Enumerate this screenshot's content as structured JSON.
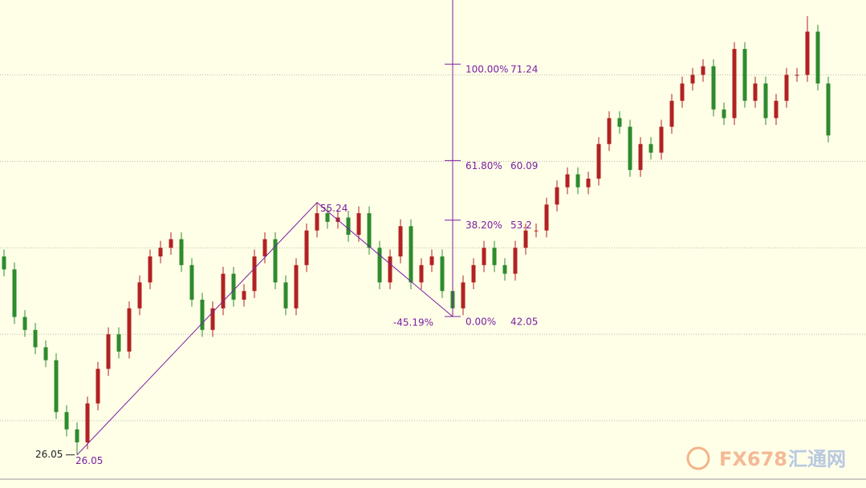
{
  "chart_data": {
    "type": "candlestick",
    "ylim": [
      23.24,
      78.66
    ],
    "yticks": [
      30,
      40,
      50,
      60,
      70
    ],
    "grid": true,
    "up_color": "#b22222",
    "down_color": "#2e8b2e",
    "open": [
      49,
      47.5,
      42,
      40.5,
      38.5,
      37,
      31,
      29,
      27.5,
      32,
      36,
      40,
      38,
      43,
      46,
      49,
      50,
      51,
      48,
      44,
      40.5,
      43,
      47,
      44,
      45,
      49,
      51,
      46,
      43,
      48,
      52,
      54,
      53,
      53.5,
      51.5,
      54,
      50,
      46,
      49,
      52.5,
      46,
      48,
      49,
      45,
      43,
      46,
      48,
      50,
      48,
      47,
      50,
      52,
      52,
      55,
      57,
      58.5,
      57,
      58,
      62,
      65,
      64,
      59,
      62,
      61,
      64,
      67,
      69,
      70,
      71,
      66,
      65,
      73,
      67,
      69,
      65,
      67,
      70,
      70,
      75,
      69
    ],
    "high": [
      49.8,
      48.3,
      42.8,
      41.3,
      39.3,
      37.8,
      31.8,
      29.8,
      32.8,
      36.8,
      40.8,
      40.8,
      43.8,
      46.8,
      49.8,
      50.8,
      51.8,
      51.8,
      48.8,
      44.8,
      43.8,
      47.8,
      47.8,
      45.8,
      49.8,
      51.8,
      51.8,
      46.8,
      48.8,
      52.8,
      55.24,
      54.8,
      54.3,
      54.3,
      54.8,
      54.8,
      50.8,
      49.8,
      53.3,
      53.3,
      48.8,
      49.8,
      49.8,
      45.8,
      46.8,
      48.8,
      50.8,
      50.8,
      48.8,
      50.8,
      52.8,
      52.8,
      55.8,
      57.8,
      59.3,
      59.3,
      58.8,
      62.8,
      65.8,
      65.8,
      64.8,
      62.8,
      62.8,
      64.8,
      67.8,
      69.8,
      70.8,
      71.8,
      71.8,
      66.8,
      73.8,
      73.8,
      69.8,
      69.8,
      67.8,
      70.8,
      70.8,
      76.8,
      75.8,
      69.8
    ],
    "low": [
      46.7,
      41.2,
      39.7,
      37.7,
      36.2,
      30.2,
      28.2,
      26.05,
      26.7,
      31.2,
      35.2,
      37.2,
      37.2,
      42.2,
      45.2,
      48.2,
      49.2,
      47.2,
      43.2,
      39.7,
      39.7,
      42.2,
      43.2,
      43.2,
      44.2,
      48.2,
      45.2,
      42.2,
      42.2,
      47.2,
      51.2,
      52.2,
      52.2,
      50.7,
      50.7,
      49.2,
      45.2,
      45.2,
      48.2,
      45.2,
      45.2,
      47.2,
      44.2,
      42.05,
      42.2,
      45.2,
      47.2,
      47.2,
      46.2,
      46.2,
      49.2,
      51.2,
      51.2,
      54.2,
      56.2,
      56.2,
      56.2,
      57.2,
      61.2,
      63.2,
      58.2,
      58.2,
      60.2,
      60.2,
      63.2,
      66.2,
      68.2,
      69.2,
      65.2,
      64.2,
      64.2,
      66.2,
      66.2,
      64.2,
      64.2,
      66.2,
      69.2,
      69.2,
      68.2,
      62.2
    ],
    "close": [
      47.5,
      42,
      40.5,
      38.5,
      37,
      31,
      29,
      27.5,
      32,
      36,
      40,
      38,
      43,
      46,
      49,
      50,
      51,
      48,
      44,
      40.5,
      43,
      47,
      44,
      45,
      49,
      51,
      46,
      43,
      48,
      52,
      54,
      53,
      53.5,
      51.5,
      54,
      50,
      46,
      49,
      52.5,
      46,
      48,
      49,
      45,
      43,
      46,
      48,
      50,
      48,
      47,
      50,
      52,
      52,
      55,
      57,
      58.5,
      57,
      58,
      62,
      65,
      64,
      59,
      62,
      61,
      64,
      67,
      69,
      70,
      71,
      66,
      65,
      73,
      67,
      69,
      65,
      67,
      70,
      70,
      75,
      69,
      63
    ],
    "zigzag": [
      {
        "index": 7,
        "value": 26.05
      },
      {
        "index": 30,
        "value": 55.24
      },
      {
        "index": 43,
        "value": 42.05
      }
    ],
    "zigzag_change": "-45.19%",
    "fib_index": 43,
    "fib_levels": [
      {
        "label": "100.00%",
        "value": 71.24
      },
      {
        "label": "61.80%",
        "value": 60.09
      },
      {
        "label": "38.20%",
        "value": 53.2
      },
      {
        "label": "0.00%",
        "value": 42.05
      }
    ],
    "annotation_color": "#7a1fa2"
  },
  "watermark": {
    "brand": "FX678",
    "name": "汇通网"
  }
}
